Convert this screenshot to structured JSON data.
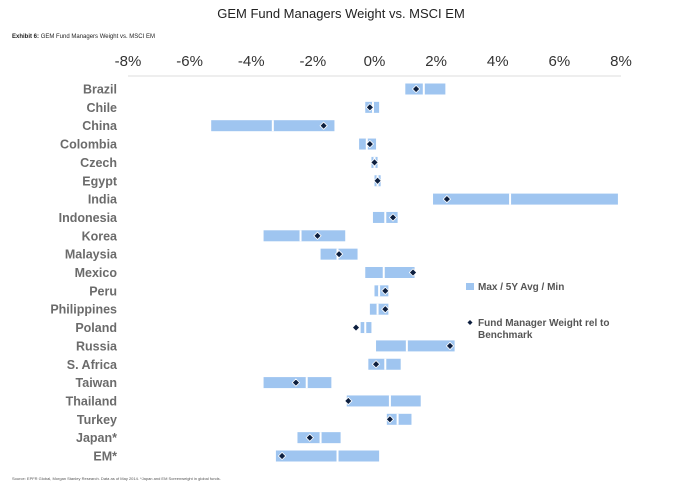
{
  "page": {
    "title": "GEM Fund Managers Weight vs. MSCI EM",
    "exhibit_label": "Exhibit 6:",
    "exhibit_title": "GEM Fund Managers Weight vs. MSCI EM",
    "footnote": "Source: EPFR Global, Morgan Stanley Research. Data as of May 2014. *Japan and EM Screenweight in global funds."
  },
  "colors": {
    "bar": "#9fc5f0",
    "marker": "#0d1f3f",
    "marker_edge": "#ffffff",
    "axis": "#bbbbbb"
  },
  "chart_data": {
    "type": "bar",
    "orientation": "horizontal-range",
    "title": "GEM Fund Managers Weight vs. MSCI EM",
    "xlim": [
      -8,
      8
    ],
    "x_ticks": [
      -8,
      -6,
      -4,
      -2,
      0,
      2,
      4,
      6,
      8
    ],
    "x_tick_labels": [
      "-8%",
      "-6%",
      "-4%",
      "-2%",
      "0%",
      "2%",
      "4%",
      "6%",
      "8%"
    ],
    "x_axis_position": "top",
    "grid": false,
    "legend_position": "right",
    "categories": [
      "Brazil",
      "Chile",
      "China",
      "Colombia",
      "Czech",
      "Egypt",
      "India",
      "Indonesia",
      "Korea",
      "Malaysia",
      "Mexico",
      "Peru",
      "Philippines",
      "Poland",
      "Russia",
      "S. Africa",
      "Taiwan",
      "Thailand",
      "Turkey",
      "Japan*",
      "EM*"
    ],
    "series": [
      {
        "name": "Max / 5Y Avg / Min",
        "min": [
          1.0,
          -0.3,
          -5.3,
          -0.5,
          -0.1,
          0.0,
          1.9,
          -0.05,
          -3.6,
          -1.75,
          -0.3,
          0.0,
          -0.15,
          -0.45,
          0.05,
          -0.2,
          -3.6,
          -0.9,
          0.4,
          -2.5,
          -3.2
        ],
        "avg": [
          1.6,
          -0.05,
          -3.3,
          -0.25,
          0.0,
          0.1,
          4.4,
          0.35,
          -2.4,
          -1.2,
          0.3,
          0.15,
          0.1,
          -0.3,
          1.05,
          0.35,
          -2.2,
          0.5,
          0.75,
          -1.75,
          -1.2
        ],
        "max": [
          2.3,
          0.15,
          -1.3,
          0.05,
          0.1,
          0.2,
          7.9,
          0.75,
          -0.95,
          -0.55,
          1.3,
          0.45,
          0.45,
          -0.1,
          2.6,
          0.85,
          -1.4,
          1.5,
          1.2,
          -1.1,
          0.15
        ]
      },
      {
        "name": "Fund Manager Weight rel to Benchmark",
        "values": [
          1.35,
          -0.15,
          -1.65,
          -0.15,
          0.0,
          0.1,
          2.35,
          0.6,
          -1.85,
          -1.15,
          1.25,
          0.35,
          0.35,
          -0.6,
          2.45,
          0.05,
          -2.55,
          -0.85,
          0.5,
          -2.1,
          -3.0
        ]
      }
    ]
  }
}
